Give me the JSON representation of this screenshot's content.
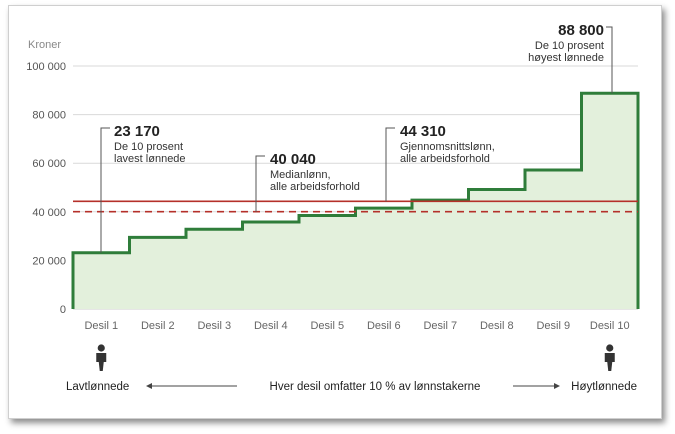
{
  "chart_data": {
    "type": "step",
    "ylabel": "Kroner",
    "ylim": [
      0,
      100000
    ],
    "yticks": [
      "0",
      "20 000",
      "40 000",
      "60 000",
      "80 000",
      "100 000"
    ],
    "ytick_values": [
      0,
      20000,
      40000,
      60000,
      80000,
      100000
    ],
    "categories": [
      "Desil 1",
      "Desil 2",
      "Desil 3",
      "Desil 4",
      "Desil 5",
      "Desil 6",
      "Desil 7",
      "Desil 8",
      "Desil 9",
      "Desil 10"
    ],
    "values": [
      23170,
      29500,
      32800,
      35800,
      38500,
      41500,
      44800,
      49200,
      57200,
      88800
    ],
    "reference_lines": [
      {
        "value": 44310,
        "style": "solid",
        "color": "#b5302a"
      },
      {
        "value": 40040,
        "style": "dashed",
        "color": "#b5302a"
      }
    ],
    "annotations": [
      {
        "value": "23 170",
        "lines": [
          "De 10 prosent",
          "lavest lønnede"
        ]
      },
      {
        "value": "40 040",
        "lines": [
          "Medianlønn,",
          "alle arbeidsforhold"
        ]
      },
      {
        "value": "44 310",
        "lines": [
          "Gjennomsnittslønn,",
          "alle arbeidsforhold"
        ]
      },
      {
        "value": "88 800",
        "lines": [
          "De 10 prosent",
          "høyest lønnede"
        ]
      }
    ],
    "footer": {
      "left": "Lavtlønnede",
      "center": "Hver desil omfatter 10 % av lønnstakerne",
      "right": "Høytlønnede"
    },
    "colors": {
      "line": "#2f7d3a",
      "fill": "#e3f0dc",
      "reference": "#b5302a",
      "grid": "#d9d9d9"
    }
  }
}
